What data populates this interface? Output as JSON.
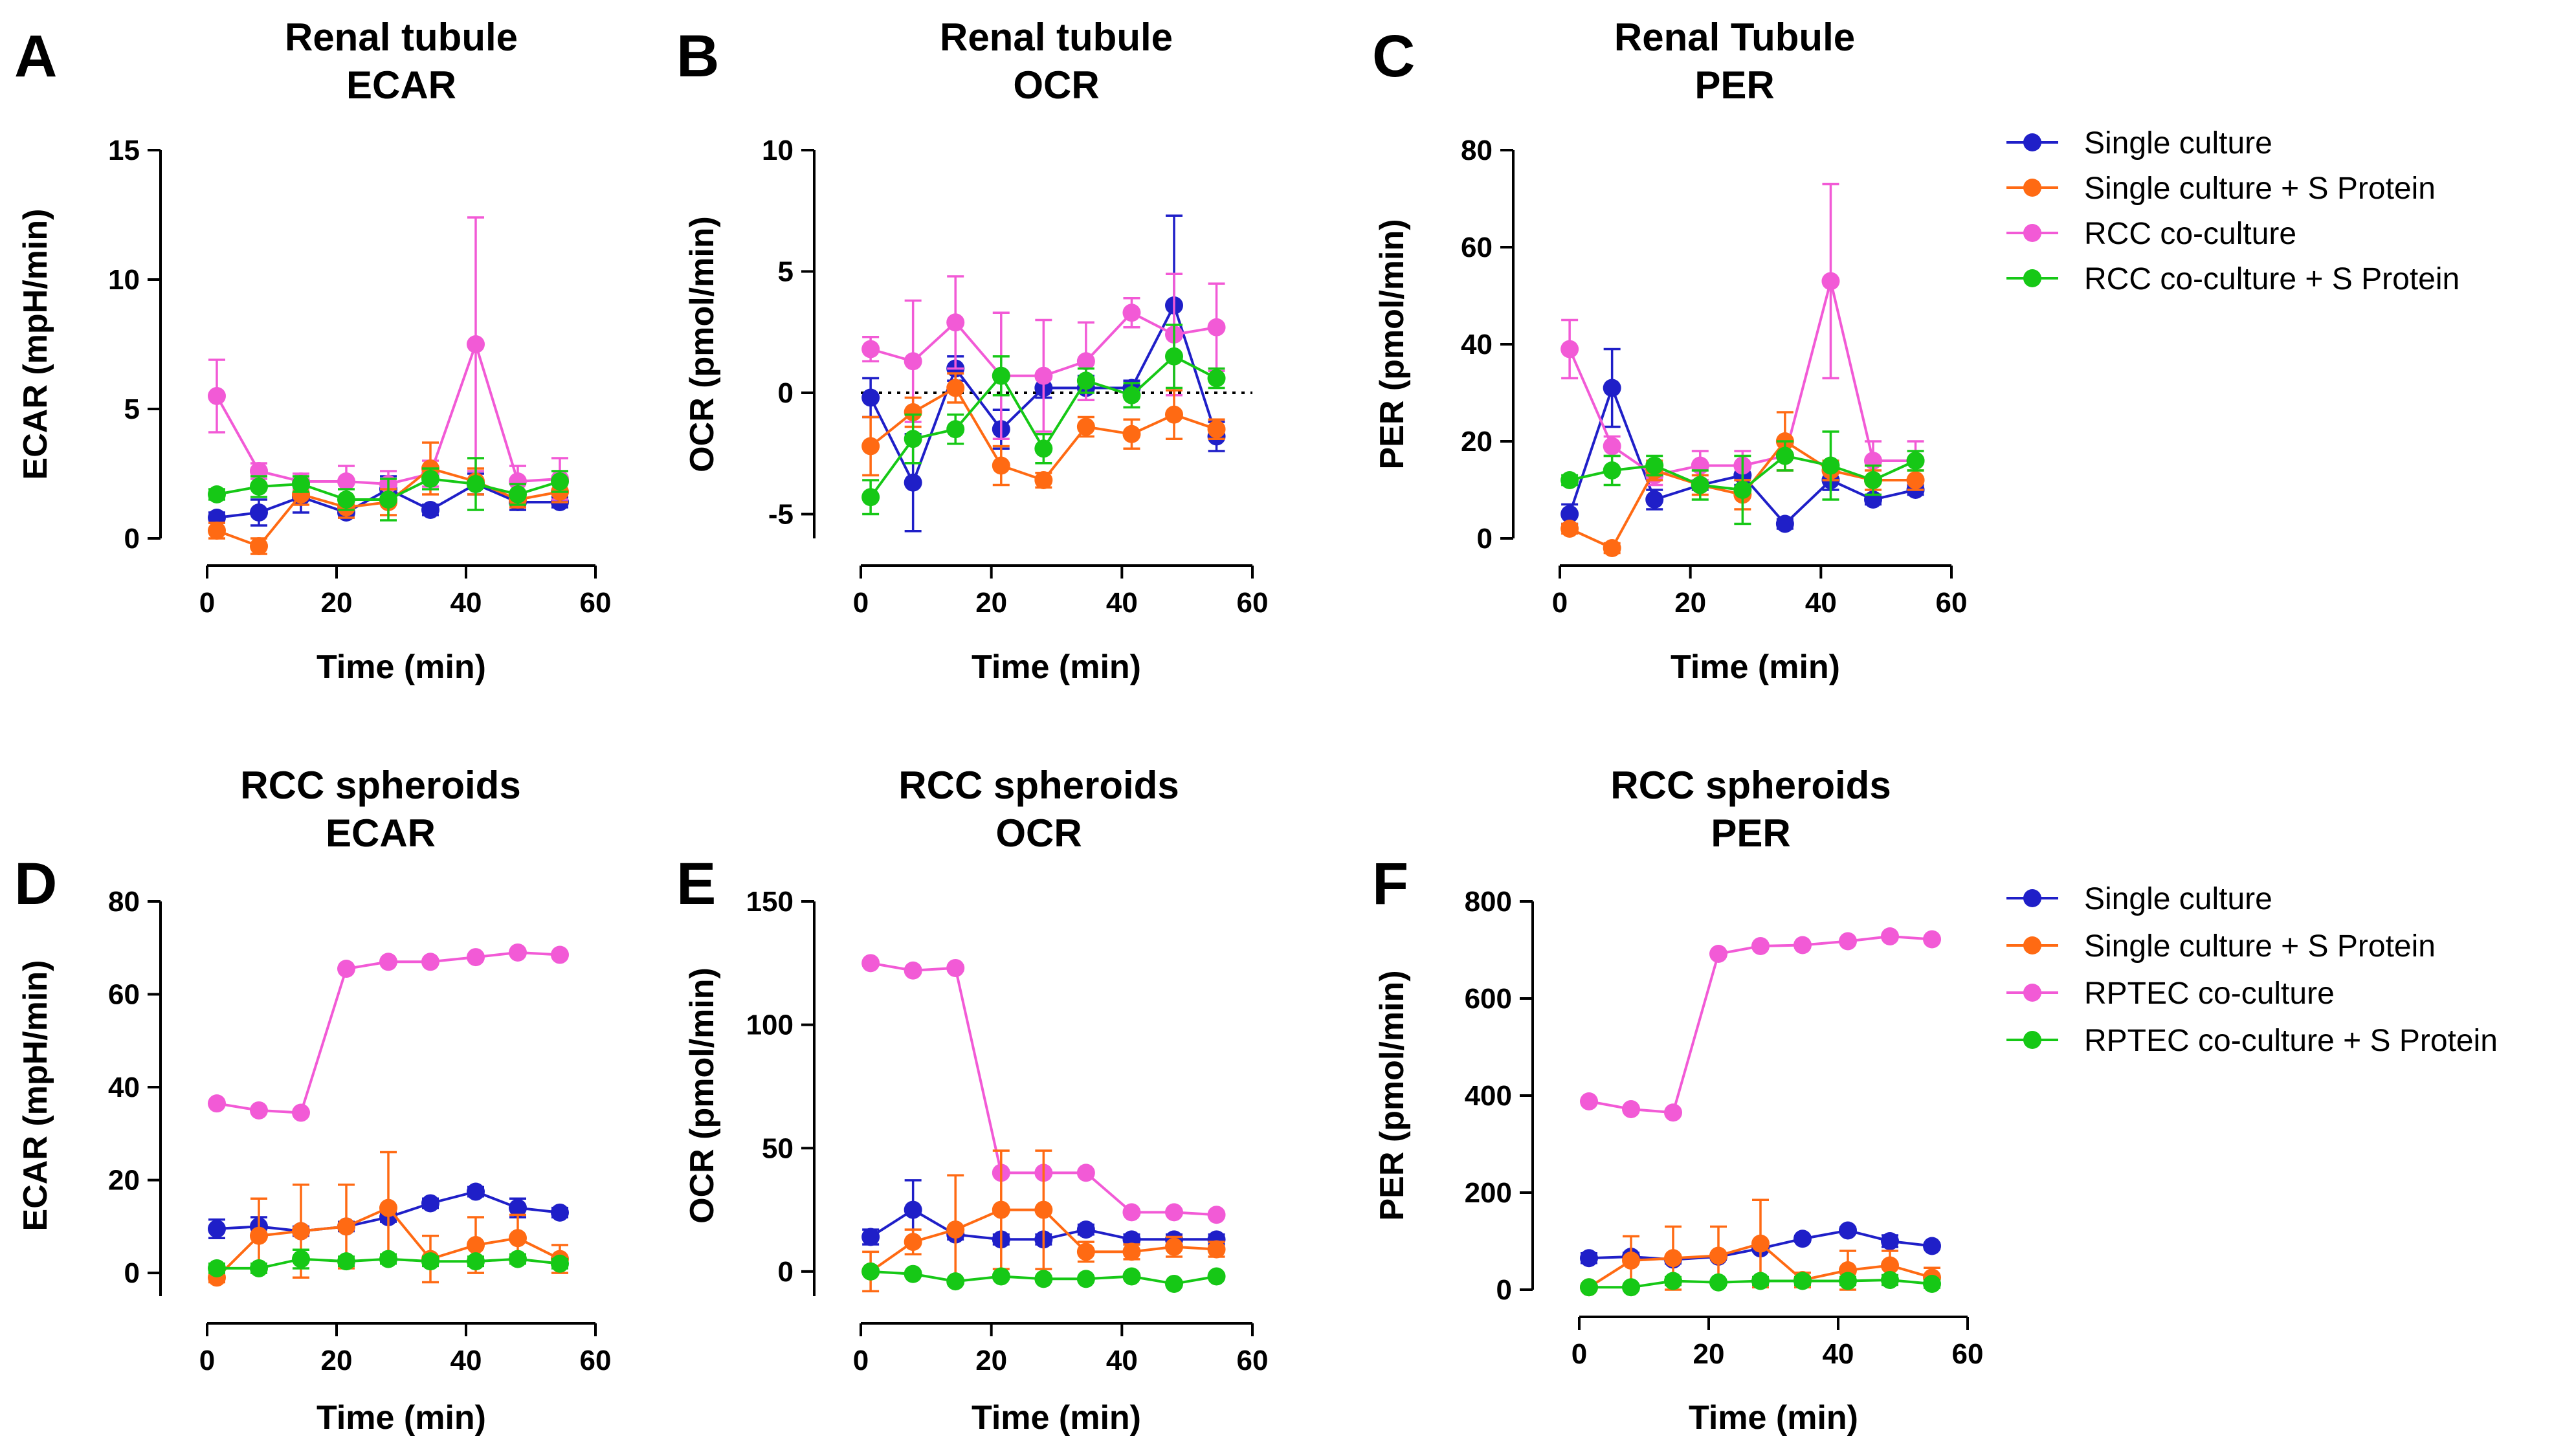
{
  "colors": {
    "single": "#1f1fc8",
    "single_s": "#ff6a13",
    "cocult": "#f25ad6",
    "cocult_s": "#16c816"
  },
  "legends": [
    {
      "id": "top",
      "entries": [
        {
          "label": "Single culture",
          "color": "#1f1fc8"
        },
        {
          "label": "Single culture + S Protein",
          "color": "#ff6a13"
        },
        {
          "label": "RCC co-culture",
          "color": "#f25ad6"
        },
        {
          "label": "RCC co-culture + S Protein",
          "color": "#16c816"
        }
      ]
    },
    {
      "id": "bottom",
      "entries": [
        {
          "label": "Single culture",
          "color": "#1f1fc8"
        },
        {
          "label": "Single culture + S Protein",
          "color": "#ff6a13"
        },
        {
          "label": "RPTEC co-culture",
          "color": "#f25ad6"
        },
        {
          "label": "RPTEC co-culture + S Protein",
          "color": "#16c816"
        }
      ]
    }
  ],
  "chart_data": [
    {
      "id": "A",
      "letter": "A",
      "type": "line",
      "title": [
        "Renal tubule",
        "ECAR"
      ],
      "xlabel": "Time (min)",
      "ylabel": "ECAR (mpH/min)",
      "xlim": [
        0,
        60
      ],
      "ylim": [
        0,
        15
      ],
      "xticks": [
        0,
        20,
        40,
        60
      ],
      "yticks": [
        0,
        5,
        10,
        15
      ],
      "zero_line": false,
      "x": [
        1.5,
        8,
        14.5,
        21.5,
        28,
        34.5,
        41.5,
        48,
        54.5
      ],
      "series": [
        {
          "name": "Single culture",
          "key": "single",
          "values": [
            0.8,
            1.0,
            1.6,
            1.0,
            1.9,
            1.1,
            2.1,
            1.4,
            1.4
          ],
          "err": [
            0.2,
            0.5,
            0.6,
            0.2,
            0.5,
            0.2,
            0.4,
            0.3,
            0.2
          ]
        },
        {
          "name": "Single culture + S Protein",
          "key": "single_s",
          "values": [
            0.3,
            -0.3,
            1.7,
            1.2,
            1.4,
            2.7,
            2.2,
            1.5,
            1.8
          ],
          "err": [
            0.3,
            0.3,
            0.4,
            0.4,
            0.5,
            1.0,
            0.5,
            0.3,
            0.4
          ]
        },
        {
          "name": "RCC co-culture",
          "key": "cocult",
          "values": [
            5.5,
            2.6,
            2.2,
            2.2,
            2.1,
            2.5,
            7.5,
            2.2,
            2.3
          ],
          "err": [
            1.4,
            0.3,
            0.3,
            0.6,
            0.5,
            0.5,
            4.9,
            0.6,
            0.8
          ]
        },
        {
          "name": "RCC co-culture + S Protein",
          "key": "cocult_s",
          "values": [
            1.7,
            2.0,
            2.1,
            1.5,
            1.5,
            2.3,
            2.1,
            1.7,
            2.2
          ],
          "err": [
            0.2,
            0.4,
            0.3,
            0.4,
            0.8,
            0.4,
            1.0,
            0.4,
            0.4
          ]
        }
      ]
    },
    {
      "id": "B",
      "letter": "B",
      "type": "line",
      "title": [
        "Renal tubule",
        "OCR"
      ],
      "xlabel": "Time (min)",
      "ylabel": "OCR (pmol/min)",
      "xlim": [
        0,
        60
      ],
      "ylim": [
        -6,
        10
      ],
      "xticks": [
        0,
        20,
        40,
        60
      ],
      "yticks": [
        -5,
        0,
        5,
        10
      ],
      "zero_line": true,
      "x": [
        1.5,
        8,
        14.5,
        21.5,
        28,
        34.5,
        41.5,
        48,
        54.5
      ],
      "series": [
        {
          "name": "Single culture",
          "key": "single",
          "values": [
            -0.2,
            -3.7,
            1.0,
            -1.5,
            0.2,
            0.2,
            0.2,
            3.6,
            -1.8
          ],
          "err": [
            0.8,
            2.0,
            0.5,
            0.8,
            0.4,
            0.5,
            0.3,
            3.7,
            0.6
          ]
        },
        {
          "name": "Single culture + S Protein",
          "key": "single_s",
          "values": [
            -2.2,
            -0.8,
            0.2,
            -3.0,
            -3.6,
            -1.4,
            -1.7,
            -0.9,
            -1.5
          ],
          "err": [
            1.2,
            0.6,
            0.6,
            0.8,
            0.3,
            0.4,
            0.6,
            1.0,
            0.4
          ]
        },
        {
          "name": "RCC co-culture",
          "key": "cocult",
          "values": [
            1.8,
            1.3,
            2.9,
            0.7,
            0.7,
            1.3,
            3.3,
            2.4,
            2.7
          ],
          "err": [
            0.5,
            2.5,
            1.9,
            2.6,
            2.3,
            1.6,
            0.6,
            2.5,
            1.8
          ]
        },
        {
          "name": "RCC co-culture + S Protein",
          "key": "cocult_s",
          "values": [
            -4.3,
            -1.9,
            -1.5,
            0.7,
            -2.3,
            0.5,
            -0.1,
            1.5,
            0.6
          ],
          "err": [
            0.7,
            1.0,
            0.6,
            0.8,
            0.6,
            0.5,
            0.5,
            1.3,
            0.4
          ]
        }
      ]
    },
    {
      "id": "C",
      "letter": "C",
      "type": "line",
      "title": [
        "Renal Tubule",
        "PER"
      ],
      "xlabel": "Time (min)",
      "ylabel": "PER (pmol/min)",
      "xlim": [
        0,
        60
      ],
      "ylim": [
        0,
        80
      ],
      "xticks": [
        0,
        20,
        40,
        60
      ],
      "yticks": [
        0,
        20,
        40,
        60,
        80
      ],
      "zero_line": false,
      "x": [
        1.5,
        8,
        14.5,
        21.5,
        28,
        34.5,
        41.5,
        48,
        54.5
      ],
      "series": [
        {
          "name": "Single culture",
          "key": "single",
          "values": [
            5,
            31,
            8,
            11,
            13,
            3,
            12,
            8,
            10
          ],
          "err": [
            2,
            8,
            2,
            1,
            2,
            1,
            2,
            1,
            1
          ]
        },
        {
          "name": "Single culture + S Protein",
          "key": "single_s",
          "values": [
            2,
            -2,
            14,
            11,
            9,
            20,
            14,
            12,
            12
          ],
          "err": [
            1,
            1,
            2,
            2,
            3,
            6,
            2,
            2,
            2
          ]
        },
        {
          "name": "RCC co-culture",
          "key": "cocult",
          "values": [
            39,
            19,
            13,
            15,
            15,
            17,
            53,
            16,
            16
          ],
          "err": [
            6,
            2,
            2,
            3,
            3,
            3,
            20,
            4,
            4
          ]
        },
        {
          "name": "RCC co-culture + S Protein",
          "key": "cocult_s",
          "values": [
            12,
            14,
            15,
            11,
            10,
            17,
            15,
            12,
            16
          ],
          "err": [
            1,
            3,
            2,
            3,
            7,
            3,
            7,
            3,
            2
          ]
        }
      ]
    },
    {
      "id": "D",
      "letter": "D",
      "type": "line",
      "title": [
        "RCC spheroids",
        "ECAR"
      ],
      "xlabel": "Time (min)",
      "ylabel": "ECAR (mpH/min)",
      "xlim": [
        0,
        60
      ],
      "ylim": [
        -5,
        80
      ],
      "xticks": [
        0,
        20,
        40,
        60
      ],
      "yticks": [
        0,
        20,
        40,
        60,
        80
      ],
      "zero_line": false,
      "x": [
        1.5,
        8,
        14.5,
        21.5,
        28,
        34.5,
        41.5,
        48,
        54.5
      ],
      "series": [
        {
          "name": "Single culture",
          "key": "single",
          "values": [
            9.5,
            10,
            9,
            10,
            12,
            15,
            17.5,
            14,
            13
          ],
          "err": [
            2,
            2,
            1,
            1,
            1,
            1,
            1,
            2,
            1
          ]
        },
        {
          "name": "Single culture + S Protein",
          "key": "single_s",
          "values": [
            -1,
            8,
            9,
            10,
            14,
            3,
            6,
            7.5,
            3
          ],
          "err": [
            1,
            8,
            10,
            9,
            12,
            5,
            6,
            5,
            3
          ]
        },
        {
          "name": "RPTEC co-culture",
          "key": "cocult",
          "values": [
            36.5,
            35,
            34.5,
            65.5,
            67,
            67,
            68,
            69,
            68.5
          ],
          "err": [
            0.5,
            0.5,
            0.5,
            0.5,
            0.5,
            0.5,
            0.5,
            0.5,
            0.5
          ]
        },
        {
          "name": "RPTEC co-culture + S Protein",
          "key": "cocult_s",
          "values": [
            1,
            1,
            3,
            2.5,
            3,
            2.5,
            2.5,
            3,
            2
          ],
          "err": [
            1,
            1,
            2,
            1,
            1,
            1,
            1,
            1,
            1
          ]
        }
      ]
    },
    {
      "id": "E",
      "letter": "E",
      "type": "line",
      "title": [
        "RCC spheroids",
        "OCR"
      ],
      "xlabel": "Time (min)",
      "ylabel": "OCR (pmol/min)",
      "xlim": [
        0,
        60
      ],
      "ylim": [
        -10,
        150
      ],
      "xticks": [
        0,
        20,
        40,
        60
      ],
      "yticks": [
        0,
        50,
        100,
        150
      ],
      "zero_line": false,
      "x": [
        1.5,
        8,
        14.5,
        21.5,
        28,
        34.5,
        41.5,
        48,
        54.5
      ],
      "series": [
        {
          "name": "Single culture",
          "key": "single",
          "values": [
            14,
            25,
            15,
            13,
            13,
            17,
            13,
            13,
            13
          ],
          "err": [
            3,
            12,
            2,
            2,
            2,
            2,
            2,
            2,
            2
          ]
        },
        {
          "name": "Single culture + S Protein",
          "key": "single_s",
          "values": [
            0,
            12,
            17,
            25,
            25,
            8,
            8,
            10,
            9
          ],
          "err": [
            8,
            5,
            22,
            24,
            24,
            4,
            3,
            4,
            3
          ]
        },
        {
          "name": "RPTEC co-culture",
          "key": "cocult",
          "values": [
            125,
            122,
            123,
            40,
            40,
            40,
            24,
            24,
            23
          ],
          "err": [
            1,
            1,
            1,
            1,
            1,
            1,
            1,
            1,
            1
          ]
        },
        {
          "name": "RPTEC co-culture + S Protein",
          "key": "cocult_s",
          "values": [
            0,
            -1,
            -4,
            -2,
            -3,
            -3,
            -2,
            -5,
            -2
          ],
          "err": [
            1,
            1,
            1,
            1,
            1,
            1,
            1,
            1,
            1
          ]
        }
      ]
    },
    {
      "id": "F",
      "letter": "F",
      "type": "line",
      "title": [
        "RCC spheroids",
        "PER"
      ],
      "xlabel": "Time (min)",
      "ylabel": "PER (pmol/min)",
      "xlim": [
        0,
        60
      ],
      "ylim": [
        0,
        800
      ],
      "xticks": [
        0,
        20,
        40,
        60
      ],
      "yticks": [
        0,
        200,
        400,
        600,
        800
      ],
      "zero_line": false,
      "x": [
        1.5,
        8,
        14.5,
        21.5,
        28,
        34.5,
        41.5,
        48,
        54.5
      ],
      "series": [
        {
          "name": "Single culture",
          "key": "single",
          "values": [
            65,
            68,
            62,
            68,
            85,
            105,
            122,
            100,
            90
          ],
          "err": [
            10,
            8,
            8,
            6,
            6,
            6,
            6,
            12,
            6
          ]
        },
        {
          "name": "Single culture + S Protein",
          "key": "single_s",
          "values": [
            5,
            60,
            65,
            70,
            95,
            20,
            40,
            50,
            25
          ],
          "err": [
            5,
            50,
            65,
            60,
            90,
            15,
            40,
            30,
            20
          ]
        },
        {
          "name": "RPTEC co-culture",
          "key": "cocult",
          "values": [
            388,
            372,
            365,
            692,
            708,
            710,
            718,
            728,
            722
          ],
          "err": [
            3,
            3,
            3,
            3,
            3,
            3,
            3,
            3,
            3
          ]
        },
        {
          "name": "RPTEC co-culture + S Protein",
          "key": "cocult_s",
          "values": [
            5,
            5,
            18,
            15,
            18,
            18,
            18,
            20,
            12
          ],
          "err": [
            5,
            5,
            8,
            5,
            8,
            8,
            8,
            10,
            8
          ]
        }
      ]
    }
  ]
}
